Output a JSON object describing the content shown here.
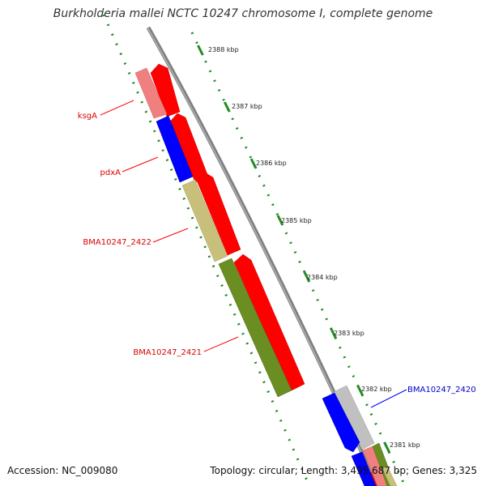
{
  "title": "Burkholderia mallei NCTC 10247 chromosome I, complete genome",
  "accession": "Accession: NC_009080",
  "topology": "Topology: circular; Length: 3,495,687 bp; Genes: 3,325",
  "colors": {
    "red": "#ff0000",
    "pink": "#f08080",
    "blue": "#0000ff",
    "khaki": "#c8c07a",
    "olive": "#6b8e23",
    "silver": "#c0c0c0",
    "tick": "#228b22",
    "backbone": "#808080",
    "label_red": "#dd0000",
    "label_blue": "#0000cc"
  },
  "ticks": [
    {
      "label": "2388 kbp"
    },
    {
      "label": "2387 kbp"
    },
    {
      "label": "2386 kbp"
    },
    {
      "label": "2385 kbp"
    },
    {
      "label": "2384 kbp"
    },
    {
      "label": "2383 kbp"
    },
    {
      "label": "2382 kbp"
    },
    {
      "label": "2381 kbp"
    }
  ],
  "genes": [
    {
      "name": "ksgA",
      "color": "label_red"
    },
    {
      "name": "pdxA",
      "color": "label_red"
    },
    {
      "name": "BMA10247_2422",
      "color": "label_red"
    },
    {
      "name": "BMA10247_2421",
      "color": "label_red"
    },
    {
      "name": "BMA10247_2420",
      "color": "label_blue"
    }
  ]
}
